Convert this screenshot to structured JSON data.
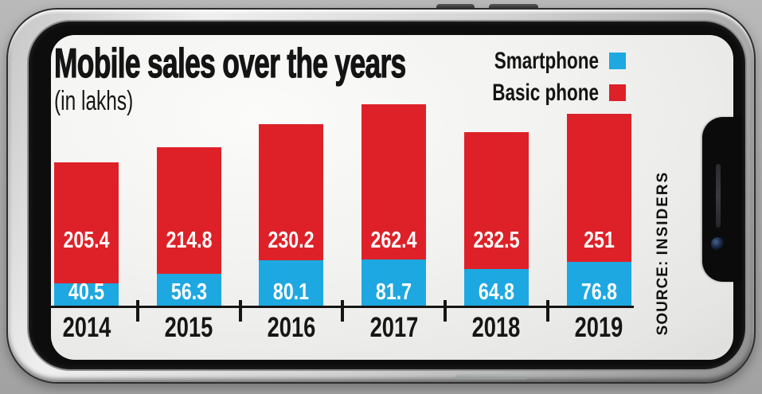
{
  "chart": {
    "title": "Mobile sales over the years",
    "subtitle": "(in lakhs)",
    "source_label": "SOURCE:",
    "source_value": "INSIDERS"
  },
  "legend": [
    {
      "label": "Smartphone",
      "color": "#1EA8E1"
    },
    {
      "label": "Basic phone",
      "color": "#DE2128"
    }
  ],
  "chart_data": {
    "type": "bar",
    "stacked": true,
    "title": "Mobile sales over the years",
    "subtitle": "(in lakhs)",
    "unit": "lakhs",
    "categories": [
      "2014",
      "2015",
      "2016",
      "2017",
      "2018",
      "2019"
    ],
    "series": [
      {
        "name": "Smartphone",
        "color": "#1EA8E1",
        "values": [
          40.5,
          56.3,
          80.1,
          81.7,
          64.8,
          76.8
        ]
      },
      {
        "name": "Basic phone",
        "color": "#DE2128",
        "values": [
          205.4,
          214.8,
          230.2,
          262.4,
          232.5,
          251
        ]
      }
    ],
    "totals": [
      245.9,
      271.1,
      310.3,
      344.1,
      297.3,
      327.8
    ],
    "value_labels_shown": true,
    "legend_position": "top-right",
    "grid": false,
    "x_axis": "years",
    "source": "SOURCE: INSIDERS"
  }
}
